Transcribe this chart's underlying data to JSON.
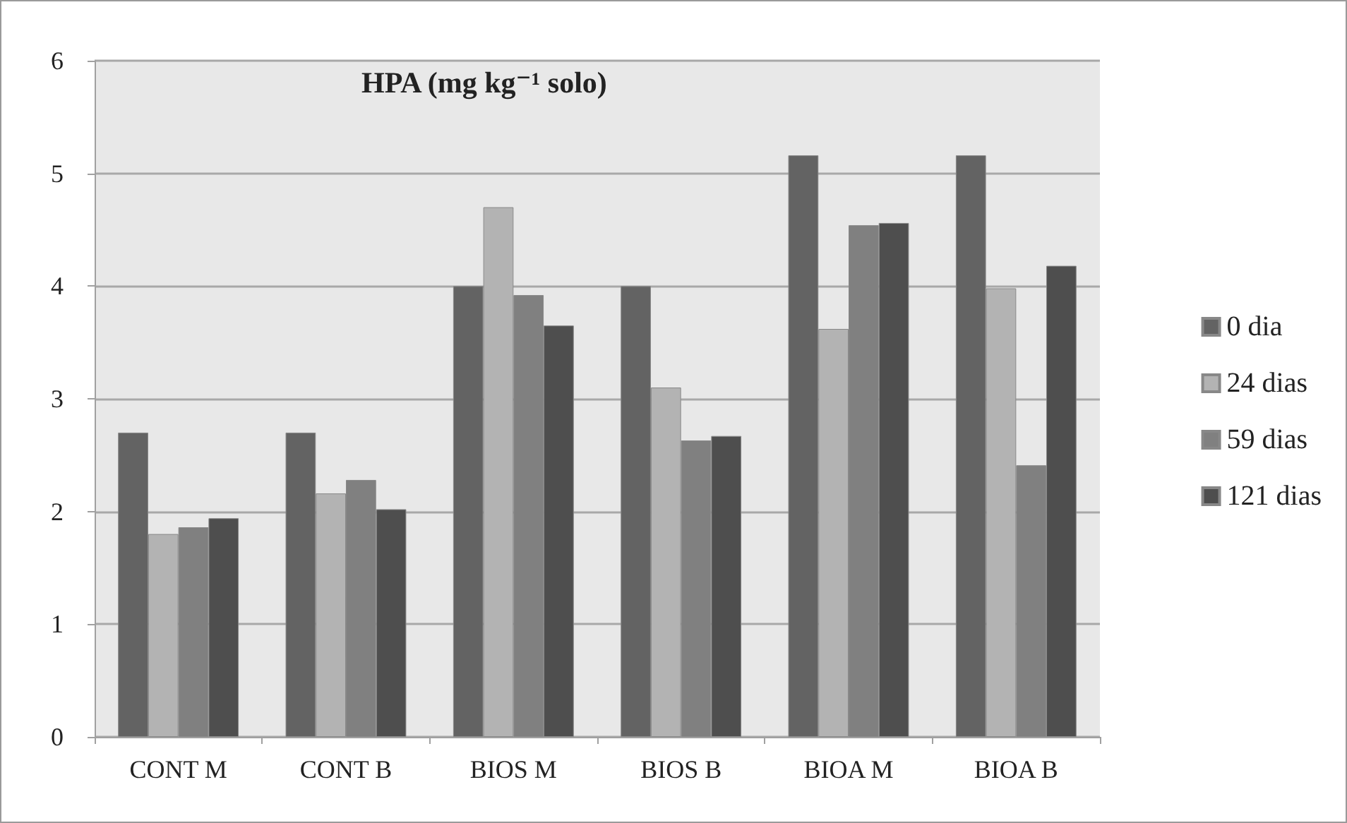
{
  "chart_data": {
    "type": "bar",
    "title": "HPA (mg kg⁻¹ solo)",
    "categories": [
      "CONT M",
      "CONT B",
      "BIOS M",
      "BIOS B",
      "BIOA M",
      "BIOA B"
    ],
    "series": [
      {
        "name": "0 dia",
        "color": "#636363",
        "values": [
          2.7,
          2.7,
          4.0,
          4.0,
          5.16,
          5.16
        ]
      },
      {
        "name": "24 dias",
        "color": "#b3b3b3",
        "values": [
          1.8,
          2.16,
          4.7,
          3.1,
          3.62,
          3.98
        ]
      },
      {
        "name": "59 dias",
        "color": "#808080",
        "values": [
          1.86,
          2.28,
          3.92,
          2.63,
          4.54,
          2.41
        ]
      },
      {
        "name": "121 dias",
        "color": "#4e4e4e",
        "values": [
          1.94,
          2.02,
          3.65,
          2.67,
          4.56,
          4.18
        ]
      }
    ],
    "ylim": [
      0,
      6
    ],
    "yticks": [
      0,
      1,
      2,
      3,
      4,
      5,
      6
    ],
    "grid": "y",
    "legend": "right"
  }
}
